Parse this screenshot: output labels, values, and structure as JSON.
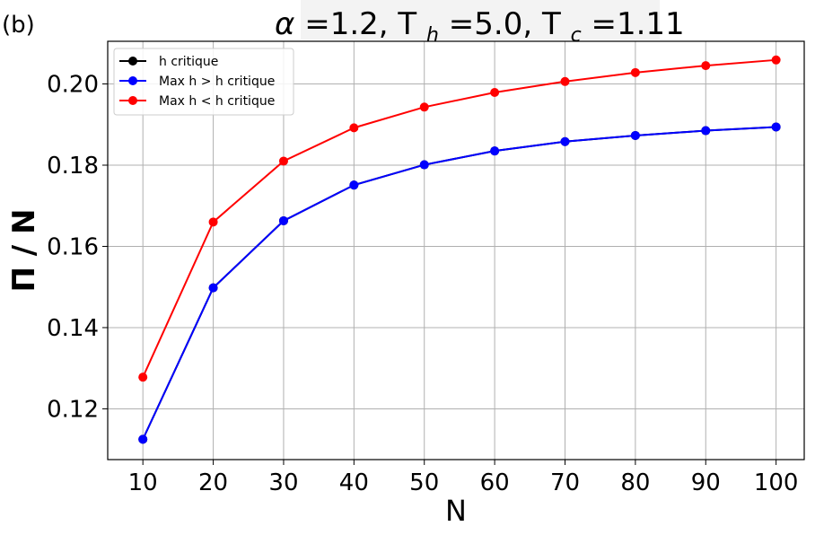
{
  "panel_tag": "(b)",
  "title": {
    "alpha_sym": "α",
    "alpha_val": "=1.2,",
    "th_main": "T",
    "th_sub": "h",
    "th_val": "=5.0,",
    "tc_main": "T",
    "tc_sub": "c",
    "tc_val": "=1.11"
  },
  "chart_data": {
    "type": "line",
    "xlabel": "N",
    "ylabel": "Π / N",
    "x": [
      10,
      20,
      30,
      40,
      50,
      60,
      70,
      80,
      90,
      100
    ],
    "xlim": [
      5,
      104
    ],
    "ylim": [
      0.1075,
      0.2105
    ],
    "xticks": [
      10,
      20,
      30,
      40,
      50,
      60,
      70,
      80,
      90,
      100
    ],
    "xtick_labels": [
      "10",
      "20",
      "30",
      "40",
      "50",
      "60",
      "70",
      "80",
      "90",
      "100"
    ],
    "yticks": [
      0.12,
      0.14,
      0.16,
      0.18,
      0.2
    ],
    "ytick_labels": [
      "0.12",
      "0.14",
      "0.16",
      "0.18",
      "0.20"
    ],
    "grid": true,
    "legend_position": "top-left",
    "series": [
      {
        "name": "h critique",
        "color": "#000000",
        "values": [
          0.1125,
          0.1498,
          0.1663,
          0.1751,
          0.1801,
          0.1835,
          0.1858,
          0.1873,
          0.1885,
          0.1894
        ]
      },
      {
        "name": "Max h > h critique",
        "color": "#0000ff",
        "values": [
          0.1125,
          0.1498,
          0.1663,
          0.1751,
          0.1801,
          0.1835,
          0.1858,
          0.1873,
          0.1885,
          0.1894
        ]
      },
      {
        "name": "Max h < h critique",
        "color": "#ff0000",
        "values": [
          0.1278,
          0.166,
          0.181,
          0.1892,
          0.1943,
          0.1979,
          0.2006,
          0.2028,
          0.2045,
          0.2059
        ]
      }
    ]
  }
}
